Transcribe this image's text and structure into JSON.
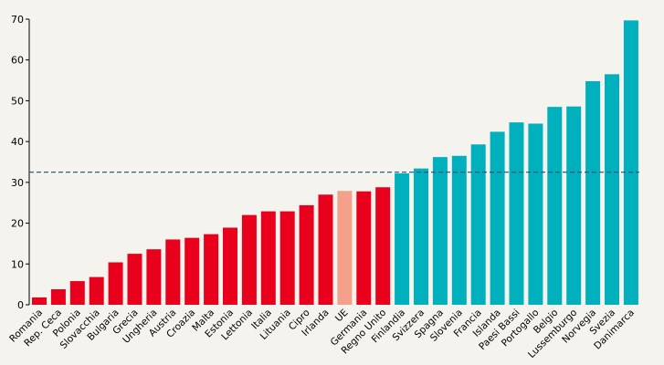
{
  "chart_data": {
    "type": "bar",
    "title": "",
    "xlabel": "",
    "ylabel": "",
    "ylim": [
      0,
      70
    ],
    "yticks": [
      0,
      10,
      20,
      30,
      40,
      50,
      60,
      70
    ],
    "grid": false,
    "reference_line": {
      "value": 32.5,
      "color": "#1f4e79",
      "style": "dashed"
    },
    "colors": {
      "below": "#e8001c",
      "eu": "#f4a08a",
      "above": "#00b0bd"
    },
    "categories": [
      "Romania",
      "Rep. Ceca",
      "Polonia",
      "Slovacchia",
      "Bulgaria",
      "Grecia",
      "Ungheria",
      "Austria",
      "Croazia",
      "Malta",
      "Estonia",
      "Lettonia",
      "Italia",
      "Lituania",
      "Cipro",
      "Irlanda",
      "UE",
      "Germania",
      "Regno Unito",
      "Finlandia",
      "Svizzera",
      "Spagna",
      "Slovenia",
      "Francia",
      "Islanda",
      "Paesi Bassi",
      "Portogallo",
      "Belgio",
      "Lussemburgo",
      "Norvegia",
      "Svezia",
      "Danimarca"
    ],
    "values": [
      1.8,
      3.8,
      5.8,
      6.8,
      10.4,
      12.5,
      13.6,
      16.0,
      16.4,
      17.3,
      18.9,
      22.0,
      22.9,
      22.9,
      24.4,
      27.0,
      27.9,
      27.8,
      28.8,
      32.2,
      33.4,
      36.2,
      36.5,
      39.3,
      42.4,
      44.7,
      44.4,
      48.5,
      48.6,
      54.8,
      56.5,
      69.7
    ],
    "groups": [
      "below",
      "below",
      "below",
      "below",
      "below",
      "below",
      "below",
      "below",
      "below",
      "below",
      "below",
      "below",
      "below",
      "below",
      "below",
      "below",
      "eu",
      "below",
      "below",
      "above",
      "above",
      "above",
      "above",
      "above",
      "above",
      "above",
      "above",
      "above",
      "above",
      "above",
      "above",
      "above"
    ]
  }
}
